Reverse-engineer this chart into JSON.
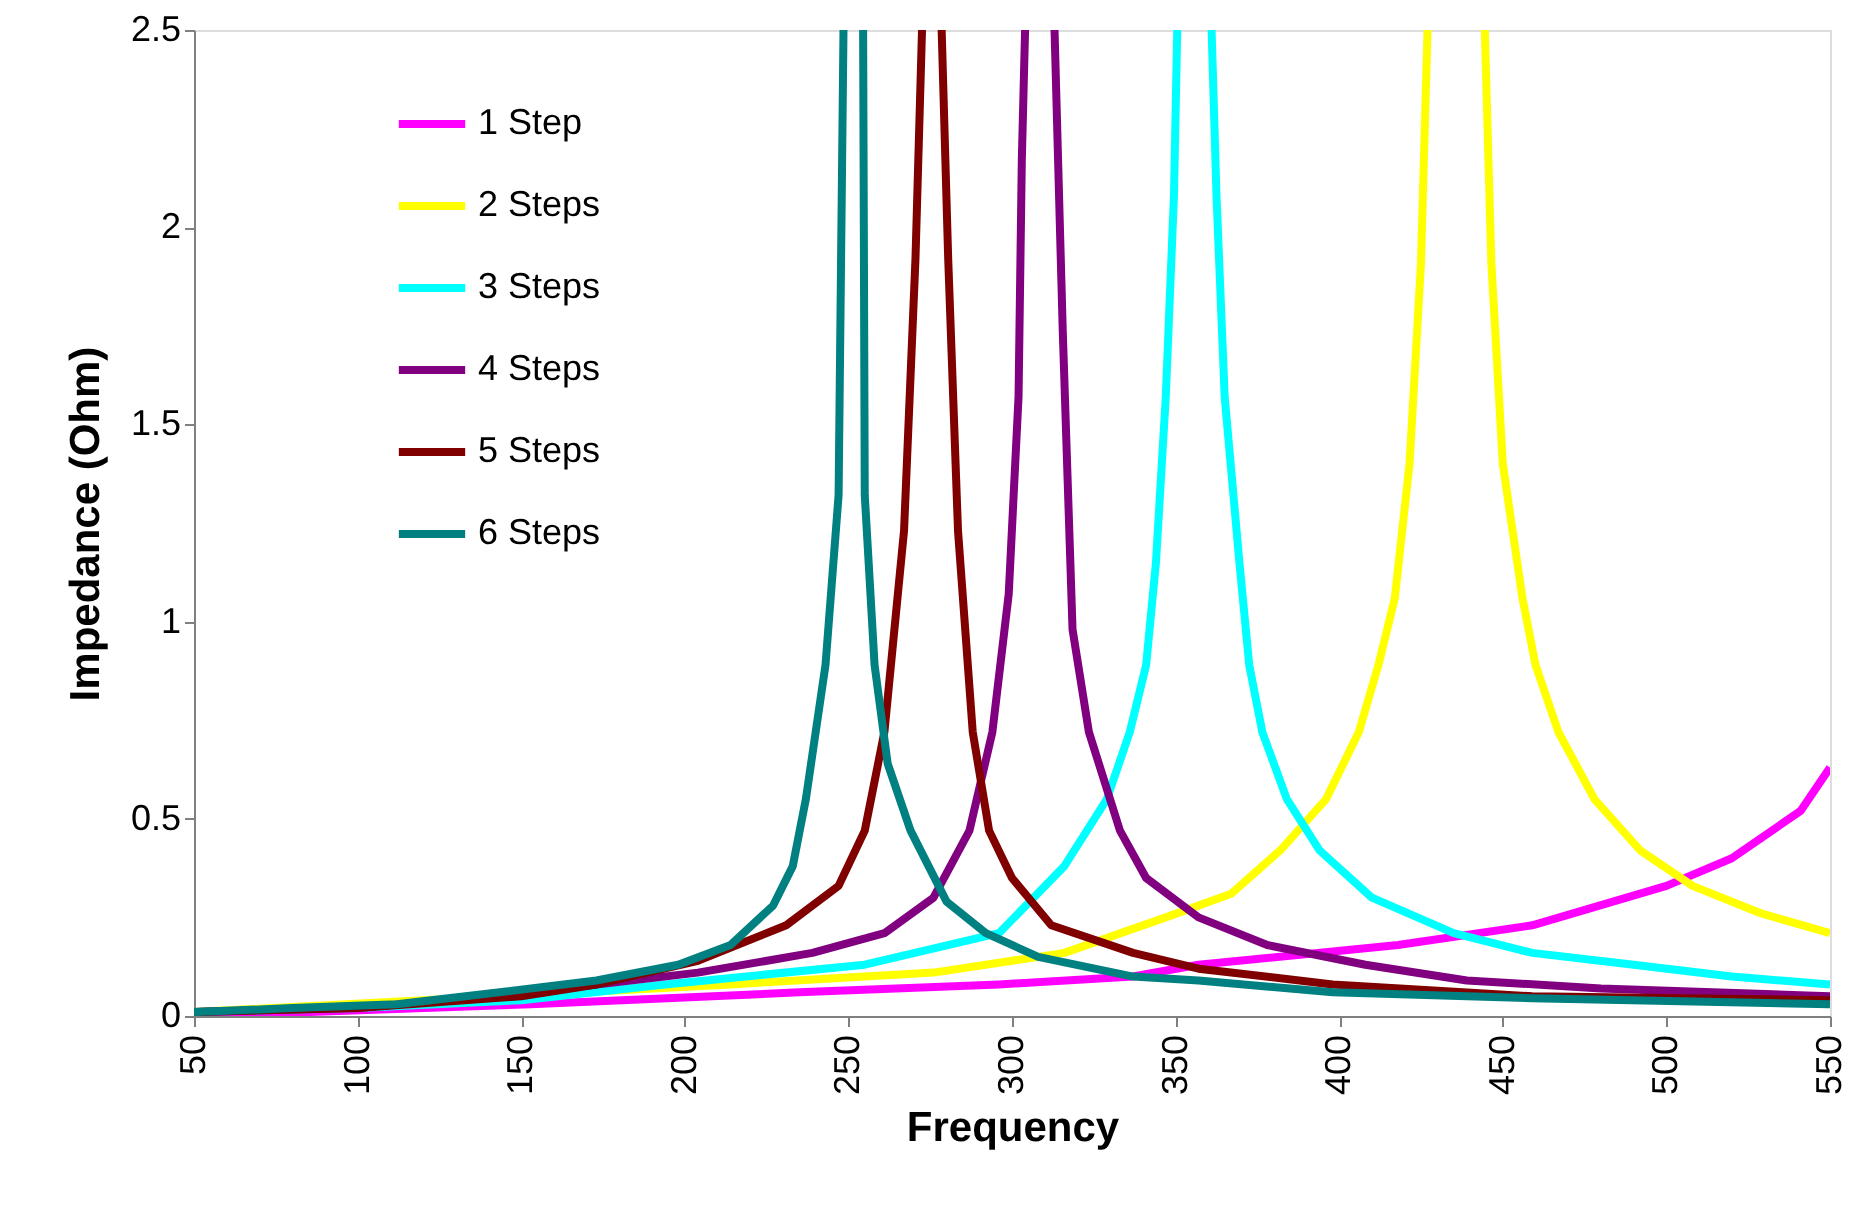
{
  "chart_data": {
    "type": "line",
    "xlabel": "Frequency",
    "ylabel": "Impedance (Ohm)",
    "xlim": [
      50,
      550
    ],
    "xticks": [
      50,
      100,
      150,
      200,
      250,
      300,
      350,
      400,
      450,
      500,
      550
    ],
    "ylim": [
      0,
      2.5
    ],
    "yticks": [
      0,
      0.5,
      1,
      1.5,
      2,
      2.5
    ],
    "grid": false,
    "legend": "top left",
    "marker": "none",
    "line_style": "solid",
    "series": [
      {
        "name": "1 Step",
        "color": "#ff00ff",
        "x": [
          50,
          85,
          153,
          235,
          296,
          337,
          357,
          418,
          459,
          500,
          520,
          541,
          550
        ],
        "values": [
          0.01,
          0.01,
          0.03,
          0.06,
          0.08,
          0.1,
          0.13,
          0.18,
          0.23,
          0.33,
          0.4,
          0.52,
          0.63
        ]
      },
      {
        "name": "2 Steps",
        "color": "#ffff00",
        "x": [
          50,
          214,
          276,
          316,
          347,
          367,
          382,
          396,
          406,
          412,
          417,
          421.5,
          425,
          427,
          436,
          444.5,
          446.5,
          450,
          456,
          460,
          467,
          478,
          492,
          508,
          529,
          550
        ],
        "values": [
          0.01,
          0.08,
          0.11,
          0.16,
          0.25,
          0.31,
          0.42,
          0.55,
          0.72,
          0.89,
          1.06,
          1.4,
          1.91,
          2.5,
          null,
          2.5,
          1.91,
          1.4,
          1.06,
          0.89,
          0.72,
          0.55,
          0.42,
          0.33,
          0.26,
          0.21
        ]
      },
      {
        "name": "3 Steps",
        "color": "#00ffff",
        "x": [
          50,
          100,
          150,
          194,
          255,
          296,
          316,
          329,
          336,
          341,
          344,
          347,
          349.5,
          350.5,
          355,
          361,
          362.5,
          365,
          369.5,
          372.5,
          376.5,
          384,
          394,
          410,
          435,
          459,
          490,
          520,
          550
        ],
        "values": [
          0.01,
          0.02,
          0.04,
          0.08,
          0.13,
          0.21,
          0.38,
          0.55,
          0.72,
          0.89,
          1.15,
          1.57,
          2.08,
          2.5,
          null,
          2.5,
          2.08,
          1.57,
          1.15,
          0.89,
          0.72,
          0.55,
          0.42,
          0.3,
          0.21,
          0.16,
          0.13,
          0.1,
          0.08
        ]
      },
      {
        "name": "4 Steps",
        "color": "#800080",
        "x": [
          50,
          100,
          153,
          204,
          239,
          261,
          276,
          287,
          294,
          299,
          302,
          303,
          304,
          308.5,
          313,
          315.5,
          318.5,
          323.5,
          333,
          341,
          357,
          378,
          408,
          439,
          480,
          550
        ],
        "values": [
          0.01,
          0.02,
          0.06,
          0.11,
          0.16,
          0.21,
          0.3,
          0.47,
          0.72,
          1.07,
          1.57,
          2.17,
          2.5,
          null,
          2.5,
          1.74,
          0.98,
          0.72,
          0.47,
          0.35,
          0.25,
          0.18,
          0.13,
          0.09,
          0.07,
          0.05
        ]
      },
      {
        "name": "5 Steps",
        "color": "#800000",
        "x": [
          50,
          100,
          150,
          173,
          204,
          231,
          247,
          255,
          261,
          267,
          270.5,
          272.5,
          275.5,
          278.5,
          280.5,
          283.5,
          288,
          293,
          300,
          312,
          337,
          357,
          398,
          459,
          550
        ],
        "values": [
          0.01,
          0.02,
          0.05,
          0.08,
          0.14,
          0.23,
          0.33,
          0.47,
          0.72,
          1.23,
          1.92,
          2.5,
          null,
          2.5,
          1.92,
          1.23,
          0.72,
          0.47,
          0.35,
          0.23,
          0.16,
          0.12,
          0.08,
          0.05,
          0.04
        ]
      },
      {
        "name": "6 Steps",
        "color": "#008080",
        "x": [
          50,
          80,
          112,
          133,
          173,
          198,
          214,
          227,
          233,
          237,
          243,
          247,
          248.5,
          251.5,
          254.5,
          255,
          258,
          262,
          269,
          280,
          292,
          308,
          337,
          357,
          398,
          459,
          550
        ],
        "values": [
          0.01,
          0.02,
          0.03,
          0.05,
          0.09,
          0.13,
          0.18,
          0.28,
          0.38,
          0.55,
          0.89,
          1.32,
          2.5,
          null,
          2.5,
          1.32,
          0.89,
          0.64,
          0.47,
          0.29,
          0.21,
          0.15,
          0.1,
          0.09,
          0.06,
          0.045,
          0.03
        ]
      }
    ]
  }
}
